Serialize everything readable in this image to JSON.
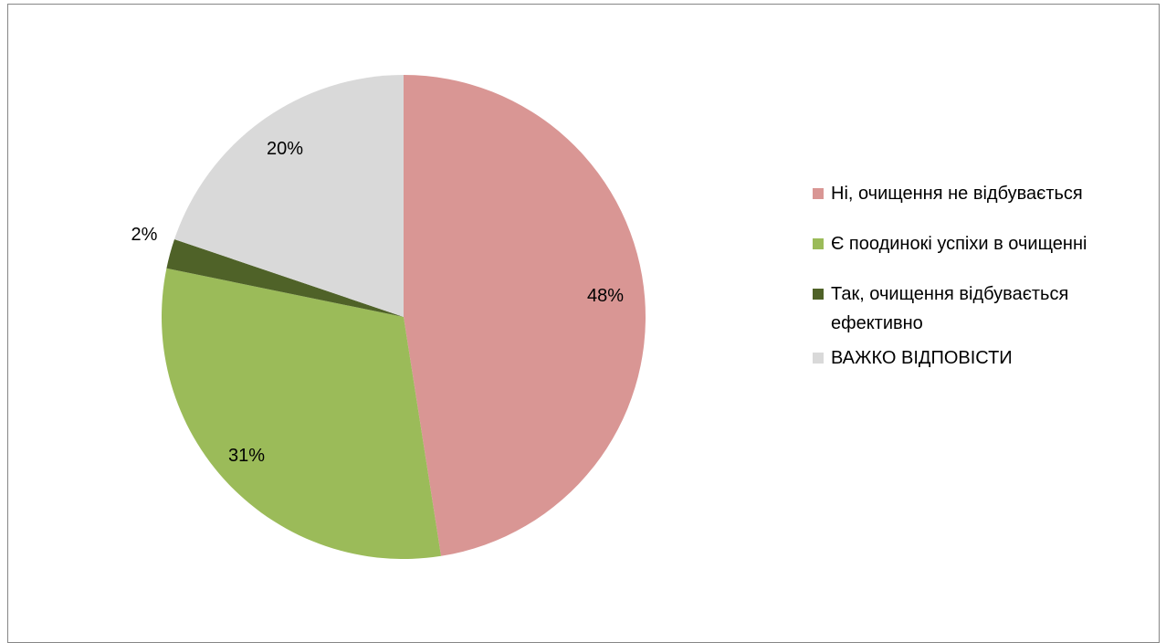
{
  "chart_data": {
    "type": "pie",
    "title": "",
    "slices": [
      {
        "label": "Ні, очищення не відбувається",
        "value": 48,
        "label_text": "48%",
        "color": "#D99694"
      },
      {
        "label": "Є поодинокі успіхи в очищенні",
        "value": 31,
        "label_text": "31%",
        "color": "#9BBB59"
      },
      {
        "label": "Так, очищення відбувається ефективно",
        "value": 2,
        "label_text": "2%",
        "color": "#4F6228"
      },
      {
        "label": "ВАЖКО ВІДПОВІСТИ",
        "value": 20,
        "label_text": "20%",
        "color": "#D9D9D9"
      }
    ],
    "legend_position": "right"
  }
}
